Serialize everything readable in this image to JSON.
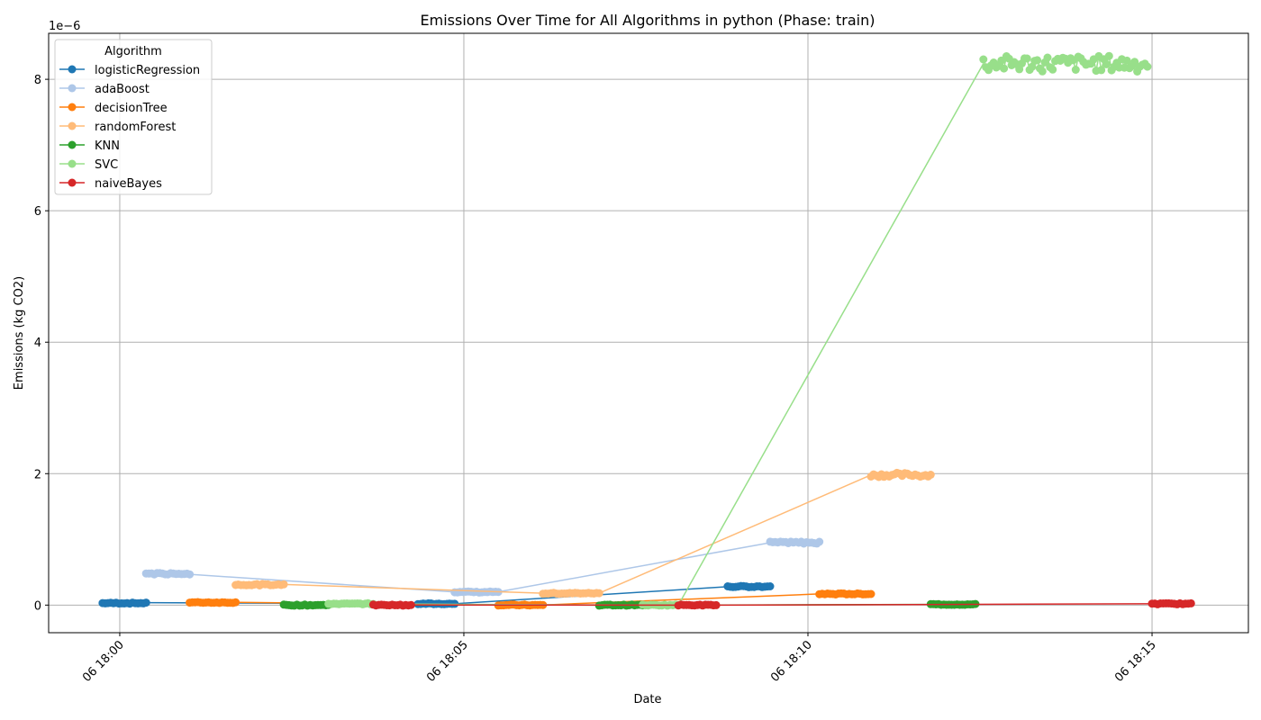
{
  "chart_data": {
    "type": "line",
    "title": "Emissions Over Time for All Algorithms in python (Phase: train)",
    "xlabel": "Date",
    "ylabel": "Emissions (kg CO2)",
    "y_offset_text": "1e−6",
    "y_multiplier": 1e-06,
    "xlim": [
      "06 17:58:58",
      "06 18:16:24"
    ],
    "ylim": [
      -0.42,
      8.7
    ],
    "x_ticks": [
      {
        "time": "06 18:00:00",
        "label": "06 18:00"
      },
      {
        "time": "06 18:05:00",
        "label": "06 18:05"
      },
      {
        "time": "06 18:10:00",
        "label": "06 18:10"
      },
      {
        "time": "06 18:15:00",
        "label": "06 18:15"
      }
    ],
    "y_ticks": [
      {
        "value": 0,
        "label": "0"
      },
      {
        "value": 2,
        "label": "2"
      },
      {
        "value": 4,
        "label": "4"
      },
      {
        "value": 6,
        "label": "6"
      },
      {
        "value": 8,
        "label": "8"
      }
    ],
    "grid": true,
    "legend": {
      "title": "Algorithm",
      "placement": "top-left"
    },
    "series": [
      {
        "name": "logisticRegression",
        "color": "#1f77b4",
        "clusters": [
          {
            "x_start": "06 17:59:45",
            "x_end": "06 18:00:23",
            "y": 0.03
          },
          {
            "x_start": "06 18:04:20",
            "x_end": "06 18:04:52",
            "y": 0.02
          },
          {
            "x_start": "06 18:08:50",
            "x_end": "06 18:09:27",
            "y": 0.28
          }
        ]
      },
      {
        "name": "adaBoost",
        "color": "#aec7e8",
        "clusters": [
          {
            "x_start": "06 18:00:23",
            "x_end": "06 18:01:01",
            "y": 0.48
          },
          {
            "x_start": "06 18:04:52",
            "x_end": "06 18:05:30",
            "y": 0.2
          },
          {
            "x_start": "06 18:09:27",
            "x_end": "06 18:10:10",
            "y": 0.95
          }
        ]
      },
      {
        "name": "decisionTree",
        "color": "#ff7f0e",
        "clusters": [
          {
            "x_start": "06 18:01:01",
            "x_end": "06 18:01:41",
            "y": 0.04
          },
          {
            "x_start": "06 18:05:30",
            "x_end": "06 18:06:09",
            "y": 0.0
          },
          {
            "x_start": "06 18:10:10",
            "x_end": "06 18:10:55",
            "y": 0.17
          }
        ]
      },
      {
        "name": "randomForest",
        "color": "#ffbb78",
        "clusters": [
          {
            "x_start": "06 18:01:41",
            "x_end": "06 18:02:23",
            "y": 0.31
          },
          {
            "x_start": "06 18:06:09",
            "x_end": "06 18:06:58",
            "y": 0.18
          },
          {
            "x_start": "06 18:10:55",
            "x_end": "06 18:11:47",
            "y": 1.98
          }
        ]
      },
      {
        "name": "KNN",
        "color": "#2ca02c",
        "clusters": [
          {
            "x_start": "06 18:02:23",
            "x_end": "06 18:03:02",
            "y": 0.0
          },
          {
            "x_start": "06 18:06:58",
            "x_end": "06 18:07:36",
            "y": 0.0
          },
          {
            "x_start": "06 18:11:47",
            "x_end": "06 18:12:26",
            "y": 0.01
          }
        ]
      },
      {
        "name": "SVC",
        "color": "#98df8a",
        "clusters": [
          {
            "x_start": "06 18:03:02",
            "x_end": "06 18:03:41",
            "y": 0.02
          },
          {
            "x_start": "06 18:07:36",
            "x_end": "06 18:08:07",
            "y": 0.0
          },
          {
            "x_start": "06 18:12:33",
            "x_end": "06 18:14:56",
            "y": 8.24
          }
        ]
      },
      {
        "name": "naiveBayes",
        "color": "#d62728",
        "clusters": [
          {
            "x_start": "06 18:03:41",
            "x_end": "06 18:04:14",
            "y": 0.0
          },
          {
            "x_start": "06 18:08:07",
            "x_end": "06 18:08:40",
            "y": 0.0
          },
          {
            "x_start": "06 18:15:00",
            "x_end": "06 18:15:34",
            "y": 0.02
          }
        ]
      }
    ]
  }
}
